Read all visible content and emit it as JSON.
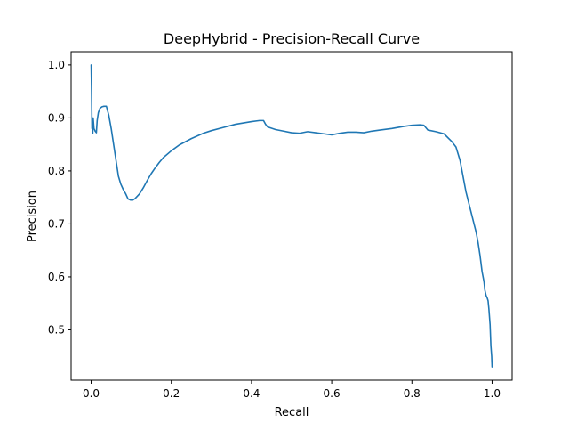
{
  "chart_data": {
    "type": "line",
    "title": "DeepHybrid - Precision-Recall Curve",
    "xlabel": "Recall",
    "ylabel": "Precision",
    "xlim": [
      -0.05,
      1.05
    ],
    "ylim": [
      0.405,
      1.025
    ],
    "grid": false,
    "legend": "none",
    "xticks": [
      {
        "value": 0.0,
        "label": "0.0"
      },
      {
        "value": 0.2,
        "label": "0.2"
      },
      {
        "value": 0.4,
        "label": "0.4"
      },
      {
        "value": 0.6,
        "label": "0.6"
      },
      {
        "value": 0.8,
        "label": "0.8"
      },
      {
        "value": 1.0,
        "label": "1.0"
      }
    ],
    "yticks": [
      {
        "value": 0.5,
        "label": "0.5"
      },
      {
        "value": 0.6,
        "label": "0.6"
      },
      {
        "value": 0.7,
        "label": "0.7"
      },
      {
        "value": 0.8,
        "label": "0.8"
      },
      {
        "value": 0.9,
        "label": "0.9"
      },
      {
        "value": 1.0,
        "label": "1.0"
      }
    ],
    "series": [
      {
        "color": "#1f77b4",
        "x": [
          0.0,
          0.001,
          0.002,
          0.003,
          0.004,
          0.005,
          0.007,
          0.01,
          0.013,
          0.015,
          0.018,
          0.022,
          0.027,
          0.032,
          0.038,
          0.044,
          0.05,
          0.056,
          0.062,
          0.068,
          0.074,
          0.08,
          0.086,
          0.092,
          0.098,
          0.104,
          0.11,
          0.115,
          0.12,
          0.125,
          0.13,
          0.14,
          0.15,
          0.16,
          0.17,
          0.18,
          0.2,
          0.22,
          0.25,
          0.28,
          0.3,
          0.33,
          0.36,
          0.4,
          0.42,
          0.43,
          0.435,
          0.44,
          0.46,
          0.48,
          0.5,
          0.52,
          0.54,
          0.56,
          0.58,
          0.6,
          0.62,
          0.64,
          0.66,
          0.68,
          0.7,
          0.72,
          0.75,
          0.78,
          0.8,
          0.82,
          0.83,
          0.84,
          0.86,
          0.88,
          0.9,
          0.91,
          0.92,
          0.925,
          0.93,
          0.935,
          0.94,
          0.945,
          0.95,
          0.955,
          0.96,
          0.965,
          0.97,
          0.975,
          0.98,
          0.982,
          0.985,
          0.988,
          0.99,
          0.992,
          0.995,
          0.997,
          0.998,
          0.999,
          1.0
        ],
        "y": [
          1.0,
          0.95,
          0.88,
          0.9,
          0.87,
          0.9,
          0.88,
          0.875,
          0.872,
          0.895,
          0.91,
          0.918,
          0.921,
          0.922,
          0.922,
          0.905,
          0.88,
          0.85,
          0.82,
          0.79,
          0.775,
          0.765,
          0.757,
          0.747,
          0.745,
          0.745,
          0.748,
          0.752,
          0.756,
          0.762,
          0.768,
          0.782,
          0.795,
          0.806,
          0.816,
          0.825,
          0.838,
          0.849,
          0.861,
          0.871,
          0.876,
          0.882,
          0.888,
          0.893,
          0.895,
          0.895,
          0.888,
          0.883,
          0.878,
          0.875,
          0.872,
          0.871,
          0.874,
          0.872,
          0.87,
          0.868,
          0.871,
          0.873,
          0.873,
          0.872,
          0.875,
          0.877,
          0.88,
          0.884,
          0.886,
          0.887,
          0.886,
          0.877,
          0.874,
          0.87,
          0.855,
          0.845,
          0.82,
          0.8,
          0.78,
          0.76,
          0.745,
          0.73,
          0.715,
          0.7,
          0.685,
          0.665,
          0.64,
          0.61,
          0.59,
          0.575,
          0.565,
          0.56,
          0.555,
          0.54,
          0.51,
          0.47,
          0.46,
          0.45,
          0.43
        ]
      }
    ]
  }
}
